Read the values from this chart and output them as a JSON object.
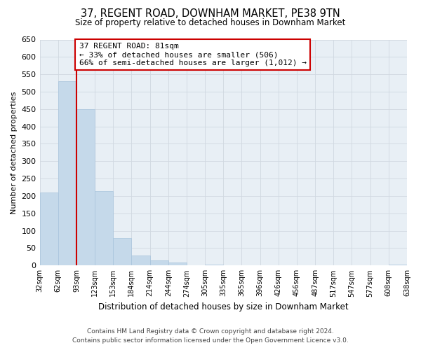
{
  "title": "37, REGENT ROAD, DOWNHAM MARKET, PE38 9TN",
  "subtitle": "Size of property relative to detached houses in Downham Market",
  "bar_values": [
    210,
    530,
    450,
    215,
    80,
    28,
    15,
    8,
    0,
    2,
    0,
    0,
    0,
    0,
    0,
    0,
    0,
    1,
    0,
    2
  ],
  "bin_labels": [
    "32sqm",
    "62sqm",
    "93sqm",
    "123sqm",
    "153sqm",
    "184sqm",
    "214sqm",
    "244sqm",
    "274sqm",
    "305sqm",
    "335sqm",
    "365sqm",
    "396sqm",
    "426sqm",
    "456sqm",
    "487sqm",
    "517sqm",
    "547sqm",
    "577sqm",
    "608sqm",
    "638sqm"
  ],
  "bar_color": "#c5d9ea",
  "bar_edge_color": "#a8c4dc",
  "grid_color": "#d0d8e0",
  "ylabel": "Number of detached properties",
  "xlabel": "Distribution of detached houses by size in Downham Market",
  "ylim": [
    0,
    650
  ],
  "yticks": [
    0,
    50,
    100,
    150,
    200,
    250,
    300,
    350,
    400,
    450,
    500,
    550,
    600,
    650
  ],
  "vline_x_index": 2,
  "vline_color": "#cc0000",
  "annotation_title": "37 REGENT ROAD: 81sqm",
  "annotation_line1": "← 33% of detached houses are smaller (506)",
  "annotation_line2": "66% of semi-detached houses are larger (1,012) →",
  "annotation_box_color": "#ffffff",
  "annotation_box_edge": "#cc0000",
  "footer_line1": "Contains HM Land Registry data © Crown copyright and database right 2024.",
  "footer_line2": "Contains public sector information licensed under the Open Government Licence v3.0.",
  "background_color": "#ffffff",
  "axes_background": "#e8eff5"
}
